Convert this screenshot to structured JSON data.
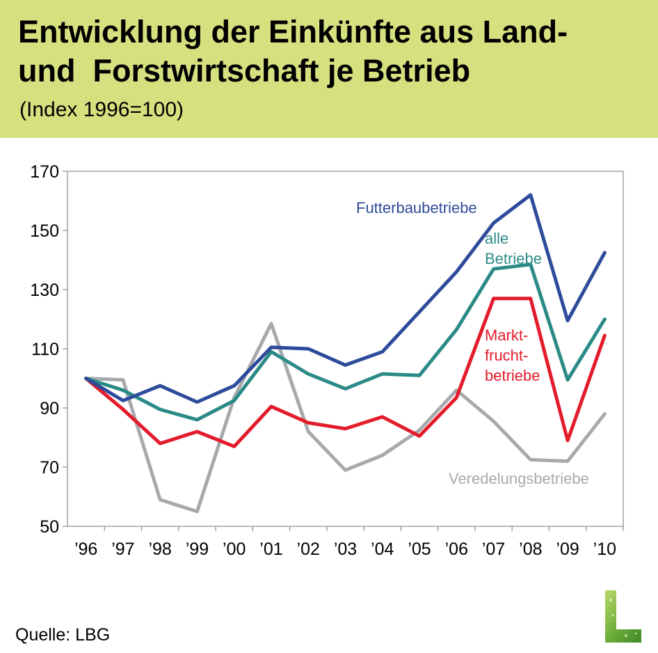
{
  "header": {
    "title_line1": "Entwicklung der Einkünfte aus Land-",
    "title_line2": "und  Forstwirtschaft je Betrieb",
    "subtitle": "(Index 1996=100)"
  },
  "footer": {
    "source": "Quelle: LBG"
  },
  "colors": {
    "header_bg": "#d6e07f",
    "futterbau": "#2e4b9b",
    "alle": "#2a8a86",
    "marktfrucht": "#e31b2a",
    "veredelung": "#a7a9ac"
  },
  "chart_data": {
    "type": "line",
    "title": "Entwicklung der Einkünfte aus Land- und Forstwirtschaft je Betrieb",
    "subtitle": "(Index 1996=100)",
    "categories": [
      "'96",
      "'97",
      "'98",
      "'99",
      "'00",
      "'01",
      "'02",
      "'03",
      "'04",
      "'05",
      "'06",
      "'07",
      "'08",
      "'09",
      "'10"
    ],
    "ylim": [
      50,
      170
    ],
    "yticks": [
      "50",
      "70",
      "90",
      "110",
      "130",
      "150",
      "170"
    ],
    "grid": false,
    "series": [
      {
        "name": "Futterbaubetriebe",
        "color": "#2e4b9b",
        "values": [
          100,
          92.5,
          97.5,
          92,
          97.5,
          110.5,
          110,
          104.5,
          109,
          122.5,
          136,
          152.5,
          162,
          119.5,
          142.5
        ]
      },
      {
        "name": "alle Betriebe",
        "label_lines": [
          "alle",
          "Betriebe"
        ],
        "color": "#2a8a86",
        "values": [
          100,
          96,
          89.5,
          86,
          92.5,
          109,
          101.5,
          96.5,
          101.5,
          101,
          116.5,
          137,
          138.5,
          99.5,
          120
        ]
      },
      {
        "name": "Marktfruchtbetriebe",
        "label_lines": [
          "Markt-",
          "frucht-",
          "betriebe"
        ],
        "color": "#e31b2a",
        "values": [
          100,
          89.5,
          78,
          82,
          77,
          90.5,
          85,
          83,
          87,
          80.5,
          93.5,
          127,
          127,
          79,
          114.5
        ]
      },
      {
        "name": "Veredelungsbetriebe",
        "color": "#a7a9ac",
        "values": [
          100,
          99.5,
          59,
          55,
          93.5,
          118.5,
          82,
          69,
          74,
          82.5,
          96,
          85.5,
          72.5,
          72,
          88
        ]
      }
    ]
  }
}
